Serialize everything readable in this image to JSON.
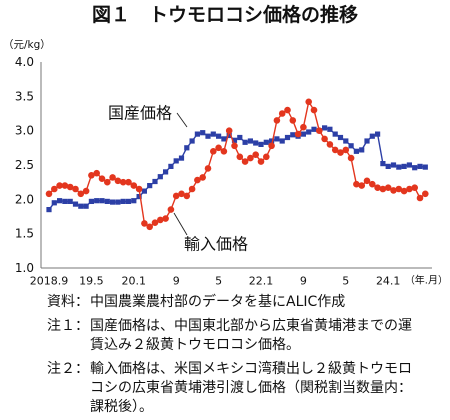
{
  "chart_data": {
    "type": "line",
    "title": "図１　トウモロコシ価格の推移",
    "ylabel": "（元/kg）",
    "xlabel": "（年.月）",
    "ylim": [
      1.0,
      4.0
    ],
    "yticks": [
      "1.0",
      "1.5",
      "2.0",
      "2.5",
      "3.0",
      "3.5",
      "4.0"
    ],
    "grid": false,
    "legend": "none",
    "x": [
      "2018.9",
      "2018.10",
      "2018.11",
      "2018.12",
      "2019.1",
      "2019.2",
      "2019.3",
      "2019.4",
      "2019.5",
      "2019.6",
      "2019.7",
      "2019.8",
      "2019.9",
      "2019.10",
      "2019.11",
      "2019.12",
      "2020.1",
      "2020.2",
      "2020.3",
      "2020.4",
      "2020.5",
      "2020.6",
      "2020.7",
      "2020.8",
      "2020.9",
      "2020.10",
      "2020.11",
      "2020.12",
      "2021.1",
      "2021.2",
      "2021.3",
      "2021.4",
      "2021.5",
      "2021.6",
      "2021.7",
      "2021.8",
      "2021.9",
      "2021.10",
      "2021.11",
      "2021.12",
      "2022.1",
      "2022.2",
      "2022.3",
      "2022.4",
      "2022.5",
      "2022.6",
      "2022.7",
      "2022.8",
      "2022.9",
      "2022.10",
      "2022.11",
      "2022.12",
      "2023.1",
      "2023.2",
      "2023.3",
      "2023.4",
      "2023.5",
      "2023.6",
      "2023.7",
      "2023.8",
      "2023.9",
      "2023.10",
      "2023.11",
      "2023.12",
      "2024.1",
      "2024.2",
      "2024.3",
      "2024.4",
      "2024.5",
      "2024.6",
      "2024.7",
      "2024.8"
    ],
    "xticks": [
      {
        "at": "2018.9",
        "label": "2018.9"
      },
      {
        "at": "2019.5",
        "label": "19.5"
      },
      {
        "at": "2020.1",
        "label": "20.1"
      },
      {
        "at": "2020.9",
        "label": "9"
      },
      {
        "at": "2021.5",
        "label": "5"
      },
      {
        "at": "2022.1",
        "label": "22.1"
      },
      {
        "at": "2022.9",
        "label": "9"
      },
      {
        "at": "2023.5",
        "label": "5"
      },
      {
        "at": "2024.1",
        "label": "24.1"
      }
    ],
    "series": [
      {
        "name": "国産価格",
        "marker": "square",
        "color": "#2c3fa6",
        "values": [
          1.85,
          1.95,
          1.98,
          1.97,
          1.97,
          1.93,
          1.9,
          1.9,
          1.97,
          1.98,
          1.98,
          1.97,
          1.96,
          1.96,
          1.97,
          1.97,
          1.98,
          2.04,
          2.12,
          2.2,
          2.26,
          2.33,
          2.4,
          2.48,
          2.56,
          2.6,
          2.75,
          2.85,
          2.95,
          2.97,
          2.92,
          2.95,
          2.92,
          2.88,
          2.93,
          2.86,
          2.9,
          2.83,
          2.85,
          2.82,
          2.8,
          2.83,
          2.85,
          2.88,
          2.85,
          2.9,
          2.94,
          2.92,
          2.95,
          2.98,
          3.02,
          3.0,
          3.04,
          3.02,
          2.95,
          2.9,
          2.85,
          2.78,
          2.7,
          2.72,
          2.85,
          2.92,
          2.95,
          2.52,
          2.48,
          2.5,
          2.47,
          2.48,
          2.5,
          2.46,
          2.48,
          2.47
        ]
      },
      {
        "name": "輸入価格",
        "marker": "circle",
        "color": "#e3361e",
        "values": [
          2.08,
          2.15,
          2.2,
          2.2,
          2.18,
          2.15,
          2.08,
          2.12,
          2.35,
          2.38,
          2.3,
          2.25,
          2.32,
          2.27,
          2.25,
          2.25,
          2.2,
          2.15,
          1.65,
          1.6,
          1.66,
          1.7,
          1.72,
          1.85,
          2.05,
          2.08,
          2.05,
          2.15,
          2.28,
          2.32,
          2.45,
          2.7,
          2.75,
          2.7,
          3.0,
          2.78,
          2.62,
          2.55,
          2.6,
          2.65,
          2.55,
          2.62,
          2.78,
          3.15,
          3.25,
          3.3,
          3.15,
          2.95,
          3.05,
          3.42,
          3.3,
          3.0,
          2.88,
          2.8,
          2.72,
          2.68,
          2.72,
          2.6,
          2.22,
          2.2,
          2.27,
          2.22,
          2.17,
          2.15,
          2.17,
          2.13,
          2.15,
          2.12,
          2.15,
          2.17,
          2.02,
          2.08
        ]
      }
    ]
  },
  "notes": [
    {
      "label": "資料：",
      "lines": [
        "中国農業農村部のデータを基にALIC作成"
      ]
    },
    {
      "label": "注１：",
      "lines": [
        "国産価格は、中国東北部から広東省黄埔港までの運",
        "賃込み２級黄トウモロコシ価格。"
      ]
    },
    {
      "label": "注２：",
      "lines": [
        "輸入価格は、米国メキシコ湾積出し２級黄トウモロ",
        "コシの広東省黄埔港引渡し価格（関税割当数量内：",
        "課税後）。"
      ]
    }
  ]
}
